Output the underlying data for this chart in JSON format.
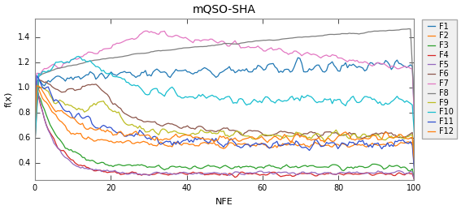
{
  "title": "mQSO-SHA",
  "xlabel": "NFE",
  "ylabel": "f(x)",
  "xlim": [
    0,
    100
  ],
  "ylim": [
    0.27,
    1.55
  ],
  "xticks": [
    0,
    20,
    40,
    60,
    80,
    100
  ],
  "yticks": [
    0.4,
    0.6,
    0.8,
    1.0,
    1.2,
    1.4
  ],
  "figsize": [
    5.67,
    2.59
  ],
  "dpi": 100,
  "bg_color": "#d9d9d9",
  "axes_bg": "#ffffff",
  "grid_color": "#ffffff",
  "title_fontsize": 10,
  "label_fontsize": 8,
  "tick_fontsize": 7,
  "legend_fontsize": 7,
  "series": {
    "F1": {
      "color": "#1f77b4"
    },
    "F2": {
      "color": "#ff7f0e"
    },
    "F3": {
      "color": "#2ca02c"
    },
    "F4": {
      "color": "#d62728"
    },
    "F5": {
      "color": "#9467bd"
    },
    "F6": {
      "color": "#8c564b"
    },
    "F7": {
      "color": "#e377c2"
    },
    "F8": {
      "color": "#7f7f7f"
    },
    "F9": {
      "color": "#bcbd22"
    },
    "F10": {
      "color": "#17becf"
    },
    "F11": {
      "color": "#3050d0"
    },
    "F12": {
      "color": "#ff7f0e"
    }
  }
}
